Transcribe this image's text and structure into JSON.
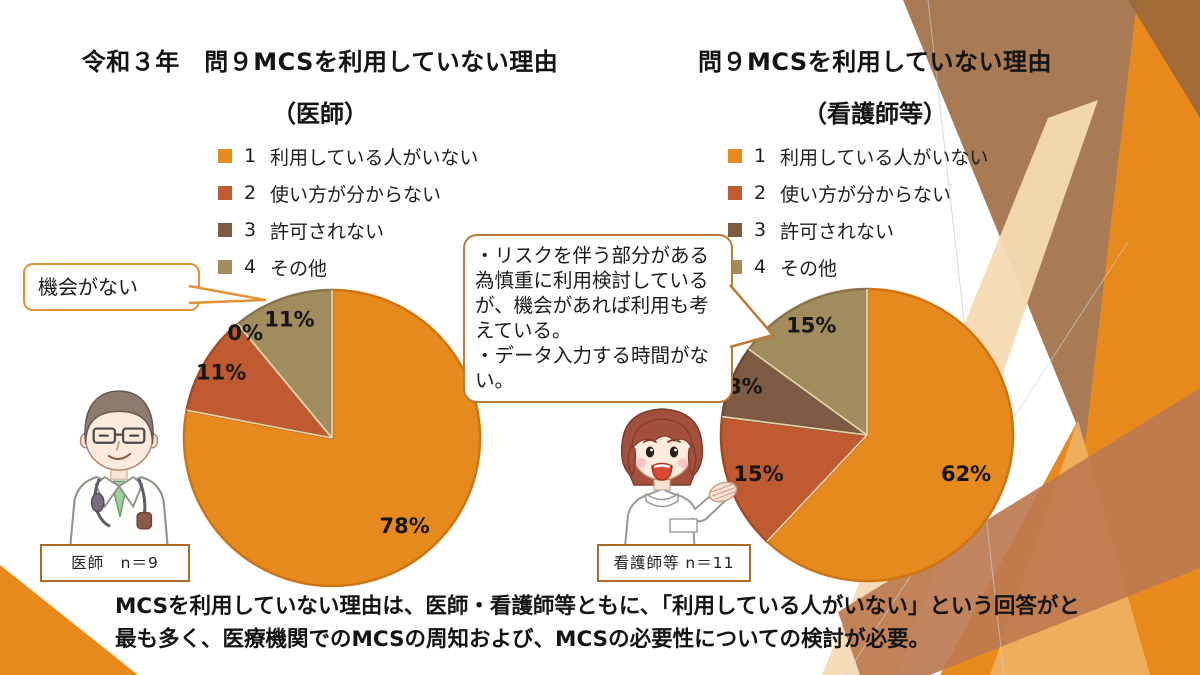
{
  "titles": {
    "left": {
      "line1": "令和３年　問９MCSを利用していない理由",
      "line2": "（医師）"
    },
    "right": {
      "line1": "問９MCSを利用していない理由",
      "line2": "（看護師等）"
    }
  },
  "legend": {
    "items": [
      {
        "num": "1",
        "label": "利用している人がいない"
      },
      {
        "num": "2",
        "label": "使い方が分からない"
      },
      {
        "num": "3",
        "label": "許可されない"
      },
      {
        "num": "4",
        "label": "その他"
      }
    ]
  },
  "callouts": {
    "doctor_note": "機会がない",
    "nurse_note_lines": [
      "・リスクを伴う部分がある為慎重に利用検討しているが、機会があれば利用も考えている。",
      "・データ入力する時間がない。"
    ]
  },
  "sample_boxes": {
    "doctor": "医師　n＝9",
    "nurse": "看護師等 n＝11"
  },
  "summary": {
    "lines": [
      "MCSを利用していない理由は、医師・看護師等ともに、「利用している人がいない」という回答がと",
      "最も多く、医療機関でのMCSの周知および、MCSの必要性についての検討が必要。"
    ]
  },
  "theme_colors": {
    "accent_orange": "#E8891C",
    "brown": "#A87B54",
    "red_brown_band": "#BC7A50",
    "cream_band": "#F4DAB2",
    "callout_border_light": "#E59235",
    "callout_border_dark": "#BD7A35",
    "nbox_border": "#B06A28"
  },
  "chart_data": [
    {
      "type": "pie",
      "title": "令和３年 問９MCSを利用していない理由（医師）",
      "group": "医師",
      "n": 9,
      "categories": [
        "1 利用している人がいない",
        "2 使い方が分からない",
        "3 許可されない",
        "4 その他"
      ],
      "values_percent": [
        78,
        11,
        0,
        11
      ],
      "data_labels": [
        "78%",
        "11%",
        "0%",
        "11%"
      ],
      "colors": [
        "#E78A1E",
        "#C05A30",
        "#7D5A43",
        "#A08C5C"
      ],
      "stroke_colors": [
        "#CD7413",
        "#A34A24",
        "#684A36",
        "#87744A"
      ],
      "label_r": [
        0.77,
        0.87,
        0.92,
        0.85
      ],
      "radius": 148,
      "start_angle_deg": 0,
      "direction": "clockwise",
      "legend_position": "top"
    },
    {
      "type": "pie",
      "title": "問９MCSを利用していない理由（看護師等）",
      "group": "看護師等",
      "n": 11,
      "categories": [
        "1 利用している人がいない",
        "2 使い方が分からない",
        "3 許可されない",
        "4 その他"
      ],
      "values_percent": [
        62,
        15,
        8,
        15
      ],
      "data_labels": [
        "62%",
        "15%",
        "8%",
        "15%"
      ],
      "colors": [
        "#E78A1E",
        "#C05A30",
        "#7D5A43",
        "#A08C5C"
      ],
      "stroke_colors": [
        "#CD7413",
        "#A34A24",
        "#684A36",
        "#87744A"
      ],
      "label_r": [
        0.73,
        0.79,
        0.9,
        0.84
      ],
      "radius": 146,
      "start_angle_deg": 0,
      "direction": "clockwise",
      "legend_position": "top"
    }
  ]
}
